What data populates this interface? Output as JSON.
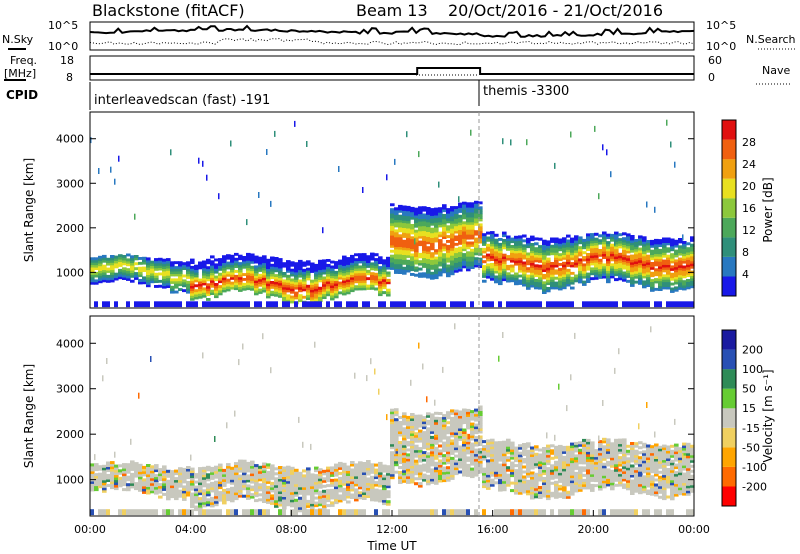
{
  "header": {
    "station": "Blackstone (fitACF)",
    "beam": "Beam 13",
    "dates": "20/Oct/2016 - 21/Oct/2016"
  },
  "strips": {
    "nsky_label": "N.Sky",
    "nsky_ticks": [
      "10^5",
      "10^0"
    ],
    "nsearch_label": "N.Search",
    "nsearch_ticks": [
      "10^5",
      "10^0"
    ],
    "freq_label": "Freq.",
    "freq_unit": "[MHz]",
    "freq_ticks": [
      "18",
      "8"
    ],
    "nave_label": "Nave",
    "nave_ticks": [
      "60",
      "0"
    ],
    "cpid_label": "CPID",
    "cpid_segments": [
      {
        "name": "interleavedscan (fast) -191",
        "start_hour": 0
      },
      {
        "name": "themis -3300",
        "start_hour": 15.5
      }
    ],
    "freq_series": {
      "hours": [
        0,
        13,
        13,
        15.5,
        15.5,
        24
      ],
      "mhz": [
        10.5,
        10.5,
        13,
        13,
        10.5,
        10.5
      ]
    }
  },
  "colors": {
    "power": [
      "#1818e8",
      "#2878c0",
      "#2f8f7a",
      "#4ca85a",
      "#8cc83c",
      "#e8e020",
      "#f0a010",
      "#f06010",
      "#e01010"
    ],
    "velocity": [
      "#ff0000",
      "#ff6a00",
      "#ffa500",
      "#f0d060",
      "#c8c8be",
      "#66cc33",
      "#2e8b57",
      "#2850b4",
      "#1a1aa0"
    ]
  },
  "chart_data": [
    {
      "type": "heatmap",
      "panel": "power",
      "ylabel": "Slant Range [km]",
      "yticks": [
        "1000",
        "2000",
        "3000",
        "4000"
      ],
      "ylim": [
        200,
        4600
      ],
      "xlim_hours": [
        0,
        24
      ],
      "colorbar_label": "Power [dB]",
      "colorbar_ticks": [
        "4",
        "8",
        "12",
        "16",
        "20",
        "24",
        "28"
      ],
      "bands": [
        {
          "from_hour": 0.0,
          "to_hour": 4.0,
          "range_km": [
            700,
            1300
          ],
          "peak_km": 1000,
          "peak_db": 22
        },
        {
          "from_hour": 4.0,
          "to_hour": 12.0,
          "range_km": [
            450,
            1300
          ],
          "peak_km": 700,
          "peak_db": 30
        },
        {
          "from_hour": 12.0,
          "to_hour": 15.5,
          "range_km": [
            1000,
            2500
          ],
          "peak_km": 1700,
          "peak_db": 28
        },
        {
          "from_hour": 15.5,
          "to_hour": 24.0,
          "range_km": [
            700,
            1800
          ],
          "peak_km": 1200,
          "peak_db": 30
        }
      ]
    },
    {
      "type": "heatmap",
      "panel": "velocity",
      "ylabel": "Slant Range [km]",
      "yticks": [
        "1000",
        "2000",
        "3000",
        "4000"
      ],
      "ylim": [
        200,
        4600
      ],
      "xlim_hours": [
        0,
        24
      ],
      "xticks": [
        "00:00",
        "04:00",
        "08:00",
        "12:00",
        "16:00",
        "20:00",
        "00:00"
      ],
      "xlabel": "Time UT",
      "colorbar_label": "Velocity [m s⁻¹]",
      "colorbar_ticks": [
        "-200",
        "-100",
        "-50",
        "-15",
        "15",
        "50",
        "100",
        "200"
      ],
      "dominant_velocity_ms": 0
    }
  ]
}
